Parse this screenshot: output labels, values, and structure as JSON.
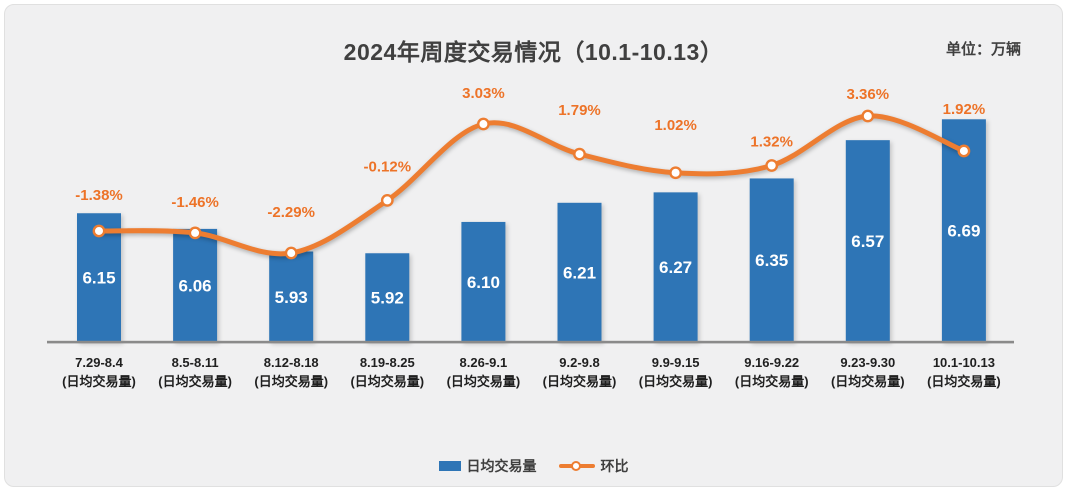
{
  "header": {
    "title": "2024年周度交易情况（10.1-10.13）",
    "unit_label": "单位：万辆"
  },
  "legend": {
    "bar_label": "日均交易量",
    "line_label": "环比"
  },
  "colors": {
    "bar": "#2e75b6",
    "line": "#ed7d31",
    "marker_fill": "#ffffff",
    "pct_label": "#ed7328",
    "bar_value_label": "#ffffff",
    "axis_line": "#8a8a8a",
    "title": "#404040",
    "background": "#f0f0f1"
  },
  "chart_data": {
    "type": "combo-bar-line",
    "title": "2024年周度交易情况（10.1-10.13）",
    "unit": "万辆",
    "categories": [
      "7.29-8.4",
      "8.5-8.11",
      "8.12-8.18",
      "8.19-8.25",
      "8.26-9.1",
      "9.2-9.8",
      "9.9-9.15",
      "9.16-9.22",
      "9.23-9.30",
      "10.1-10.13"
    ],
    "category_sublabel": "(日均交易量)",
    "series": [
      {
        "name": "日均交易量",
        "type": "bar",
        "values": [
          6.15,
          6.06,
          5.93,
          5.92,
          6.1,
          6.21,
          6.27,
          6.35,
          6.57,
          6.69
        ],
        "labels": [
          "6.15",
          "6.06",
          "5.93",
          "5.92",
          "6.10",
          "6.21",
          "6.27",
          "6.35",
          "6.57",
          "6.69"
        ]
      },
      {
        "name": "环比",
        "type": "line",
        "values": [
          -1.38,
          -1.46,
          -2.29,
          -0.12,
          3.03,
          1.79,
          1.02,
          1.32,
          3.36,
          1.92
        ],
        "labels": [
          "-1.38%",
          "-1.46%",
          "-2.29%",
          "-0.12%",
          "3.03%",
          "1.79%",
          "1.02%",
          "1.32%",
          "3.36%",
          "1.92%"
        ]
      }
    ],
    "bar_axis_implied_range": [
      5.41,
      7.0
    ],
    "line_axis_unit": "%",
    "grid": false,
    "legend_position": "bottom"
  }
}
